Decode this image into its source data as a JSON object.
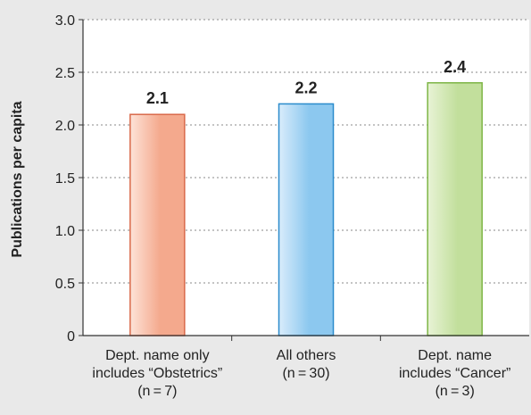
{
  "chart_data": {
    "type": "bar",
    "categories": [
      [
        "Dept. name only",
        "includes “Obstetrics”",
        "(n = 7)"
      ],
      [
        "All others",
        "(n = 30)"
      ],
      [
        "Dept. name",
        "includes “Cancer”",
        "(n = 3)"
      ]
    ],
    "values": [
      2.1,
      2.2,
      2.4
    ],
    "data_labels": [
      "2.1",
      "2.2",
      "2.4"
    ],
    "title": "",
    "xlabel": "",
    "ylabel": "Publications per capita",
    "ylim": [
      0,
      3.0
    ],
    "yticks": [
      0,
      0.5,
      1.0,
      1.5,
      2.0,
      2.5,
      3.0
    ],
    "ytick_labels": [
      "0",
      "0.5",
      "1.0",
      "1.5",
      "2.0",
      "2.5",
      "3.0"
    ],
    "grid": "horizontal dotted",
    "legend": "none",
    "bar_colors": [
      {
        "fill_light": "#fde3d8",
        "fill_dark": "#f4a98d",
        "stroke": "#d9694a"
      },
      {
        "fill_light": "#d9ecfb",
        "fill_dark": "#8cc8ef",
        "stroke": "#2b8ccc"
      },
      {
        "fill_light": "#e8f3d6",
        "fill_dark": "#c2df9c",
        "stroke": "#7db545"
      }
    ],
    "background_color": "#e9e9e9",
    "plot_background_color": "#ffffff",
    "axis_color": "#333333",
    "grid_color": "#8a8a8a"
  }
}
